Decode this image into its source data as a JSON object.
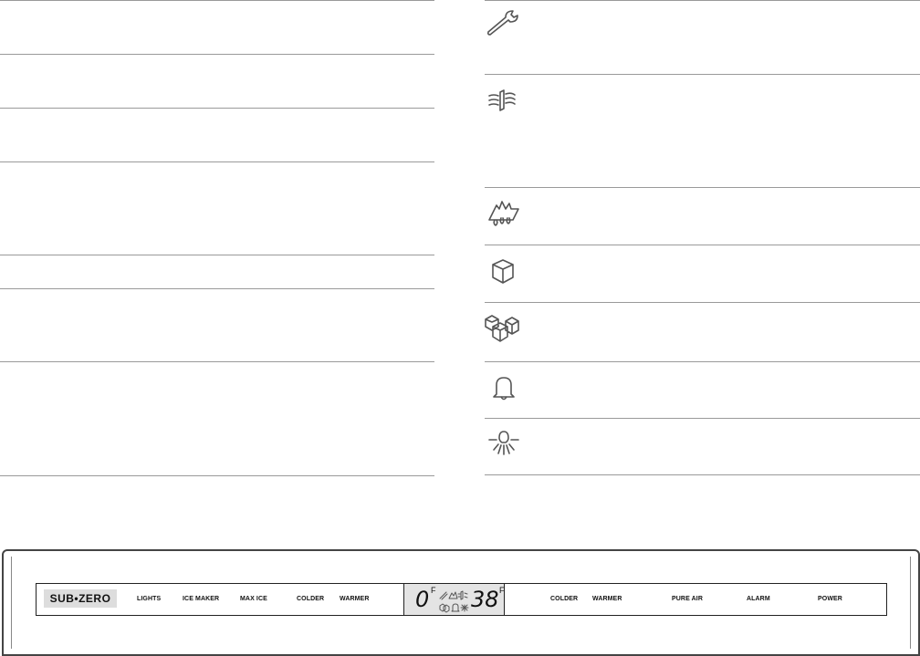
{
  "icons": [
    "wrench-icon",
    "pure-air-icon",
    "max-ice-icon",
    "ice-cube-icon",
    "ice-maker-icon",
    "alarm-bell-icon",
    "light-bulb-icon"
  ],
  "panel": {
    "logo": "SUB•ZERO",
    "left_buttons": [
      "LIGHTS",
      "ICE MAKER",
      "MAX ICE",
      "COLDER",
      "WARMER"
    ],
    "display": {
      "freezer_temp": "0",
      "freezer_unit": "F",
      "fridge_temp": "38",
      "fridge_unit": "F"
    },
    "right_buttons": [
      "COLDER",
      "WARMER",
      "PURE AIR",
      "ALARM",
      "POWER"
    ]
  }
}
